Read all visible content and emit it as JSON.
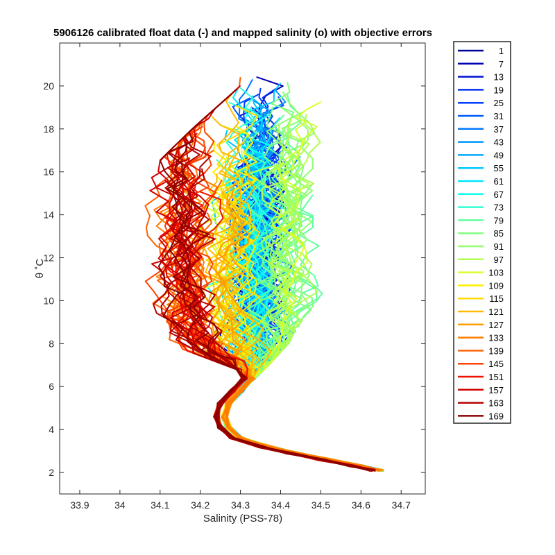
{
  "chart_data": {
    "type": "line",
    "title": "5906126 calibrated float data (-) and mapped salinity (o) with objective errors",
    "xlabel": "Salinity (PSS-78)",
    "ylabel": "θ ˚C",
    "xlim": [
      33.85,
      34.76
    ],
    "ylim": [
      1.0,
      22.0
    ],
    "xticks": [
      "33.9",
      "34",
      "34.1",
      "34.2",
      "34.3",
      "34.4",
      "34.5",
      "34.6",
      "34.7"
    ],
    "xtick_values": [
      33.9,
      34.0,
      34.1,
      34.2,
      34.3,
      34.4,
      34.5,
      34.6,
      34.7
    ],
    "yticks": [
      "2",
      "4",
      "6",
      "8",
      "10",
      "12",
      "14",
      "16",
      "18",
      "20"
    ],
    "ytick_values": [
      2,
      4,
      6,
      8,
      10,
      12,
      14,
      16,
      18,
      20
    ],
    "grid": false,
    "legend_position": "outside-right",
    "colormap": "jet",
    "legend": [
      "1",
      "7",
      "13",
      "19",
      "25",
      "31",
      "37",
      "43",
      "49",
      "55",
      "61",
      "67",
      "73",
      "79",
      "85",
      "91",
      "97",
      "103",
      "109",
      "115",
      "121",
      "127",
      "133",
      "139",
      "145",
      "151",
      "157",
      "163",
      "169"
    ],
    "legend_colors": [
      "#000096",
      "#0000b4",
      "#0012d2",
      "#0030f0",
      "#003cff",
      "#005aff",
      "#0078ff",
      "#0096ff",
      "#00a8ff",
      "#00c6ff",
      "#00e4ff",
      "#10fff0",
      "#30ffd0",
      "#60ffa0",
      "#80ff80",
      "#90ff70",
      "#b0ff50",
      "#d8ff28",
      "#fff000",
      "#ffd800",
      "#ffba00",
      "#ff9c00",
      "#ff7e00",
      "#ff6000",
      "#ff4200",
      "#f01000",
      "#d20000",
      "#b40000",
      "#8c0000"
    ],
    "deep_profile_common": [
      {
        "s": 34.65,
        "t": 2.1
      },
      {
        "s": 34.6,
        "t": 2.3
      },
      {
        "s": 34.52,
        "t": 2.6
      },
      {
        "s": 34.44,
        "t": 2.9
      },
      {
        "s": 34.37,
        "t": 3.2
      },
      {
        "s": 34.3,
        "t": 3.6
      },
      {
        "s": 34.27,
        "t": 4.1
      },
      {
        "s": 34.26,
        "t": 4.6
      },
      {
        "s": 34.27,
        "t": 5.2
      },
      {
        "s": 34.3,
        "t": 5.8
      },
      {
        "s": 34.33,
        "t": 6.4
      }
    ],
    "upper_envelope": [
      {
        "t": 6.8,
        "s_min": 34.29,
        "s_max": 34.36
      },
      {
        "t": 8,
        "s_min": 34.12,
        "s_max": 34.42
      },
      {
        "t": 10,
        "s_min": 34.05,
        "s_max": 34.5
      },
      {
        "t": 12,
        "s_min": 34.08,
        "s_max": 34.52
      },
      {
        "t": 14,
        "s_min": 33.97,
        "s_max": 34.55
      },
      {
        "t": 16,
        "s_min": 34.07,
        "s_max": 34.6
      },
      {
        "t": 18,
        "s_min": 34.18,
        "s_max": 34.58
      },
      {
        "t": 20,
        "s_min": 34.3,
        "s_max": 34.52
      }
    ]
  }
}
